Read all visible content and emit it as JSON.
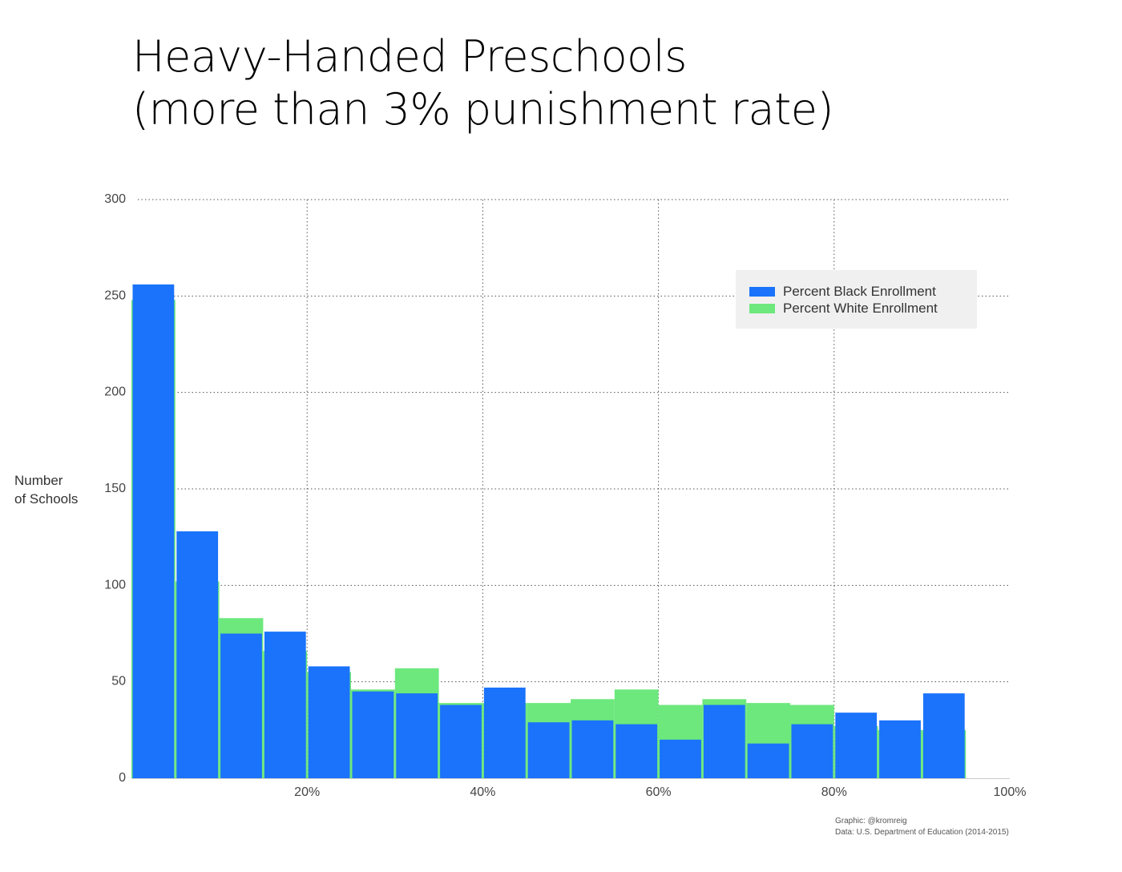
{
  "title": {
    "line1": "Heavy-Handed Preschools",
    "line2": "(more than 3% punishment rate)"
  },
  "ylabel": {
    "line1": "Number",
    "line2": "of Schools"
  },
  "legend": {
    "black": "Percent Black Enrollment",
    "white": "Percent White Enrollment"
  },
  "credits": {
    "graphic": "Graphic: @kromreig",
    "data": "Data: U.S. Department of Education (2014-2015)"
  },
  "colors": {
    "black_series": "#1a73fa",
    "white_series": "#6de87d",
    "grid": "#555555",
    "legend_bg": "#f0f0f0"
  },
  "chart_data": {
    "type": "bar",
    "title": "Heavy-Handed Preschools (more than 3% punishment rate)",
    "xlabel": "",
    "ylabel": "Number of Schools",
    "xlim": [
      0,
      100
    ],
    "ylim": [
      0,
      300
    ],
    "bin_width": 5,
    "x_ticks": [
      {
        "value": 20,
        "label": "20%"
      },
      {
        "value": 40,
        "label": "40%"
      },
      {
        "value": 60,
        "label": "60%"
      },
      {
        "value": 80,
        "label": "80%"
      },
      {
        "value": 100,
        "label": "100%"
      }
    ],
    "y_ticks": [
      {
        "value": 0,
        "label": "0"
      },
      {
        "value": 50,
        "label": "50"
      },
      {
        "value": 100,
        "label": "100"
      },
      {
        "value": 150,
        "label": "150"
      },
      {
        "value": 200,
        "label": "200"
      },
      {
        "value": 250,
        "label": "250"
      },
      {
        "value": 300,
        "label": "300"
      }
    ],
    "grid": true,
    "legend_position": "top-right",
    "bin_starts": [
      0,
      5,
      10,
      15,
      20,
      25,
      30,
      35,
      40,
      45,
      50,
      55,
      60,
      65,
      70,
      75,
      80,
      85,
      90
    ],
    "series": [
      {
        "name": "Percent White Enrollment",
        "color": "#6de87d",
        "values": [
          248,
          102,
          83,
          66,
          55,
          46,
          57,
          39,
          39,
          39,
          41,
          46,
          38,
          41,
          39,
          38,
          27,
          25,
          25
        ]
      },
      {
        "name": "Percent Black Enrollment",
        "color": "#1a73fa",
        "values": [
          256,
          128,
          75,
          76,
          58,
          45,
          44,
          38,
          47,
          29,
          30,
          28,
          20,
          38,
          18,
          28,
          34,
          30,
          44
        ]
      }
    ]
  }
}
